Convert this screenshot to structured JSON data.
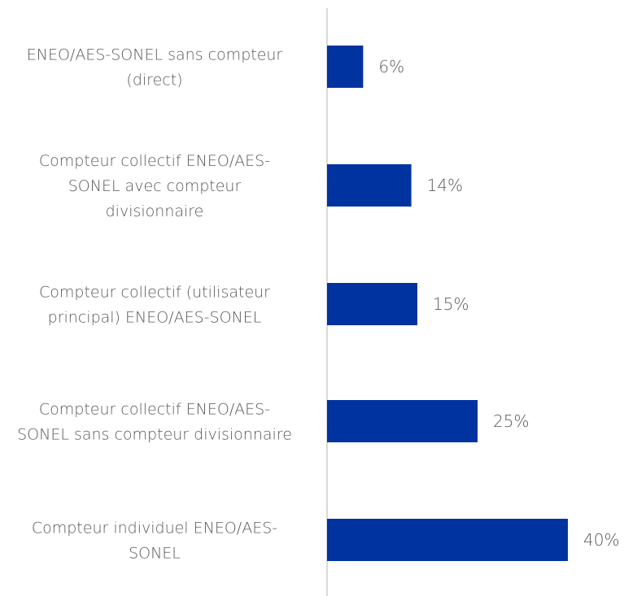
{
  "chart_data": {
    "type": "bar",
    "orientation": "horizontal",
    "categories": [
      [
        "ENEO/AES-SONEL sans compteur",
        "(direct)"
      ],
      [
        "Compteur collectif  ENEO/AES-",
        "SONEL avec compteur",
        "divisionnaire"
      ],
      [
        "Compteur collectif (utilisateur",
        "principal) ENEO/AES-SONEL"
      ],
      [
        "Compteur collectif ENEO/AES-",
        "SONEL sans compteur divisionnaire"
      ],
      [
        "Compteur individuel ENEO/AES-",
        "SONEL"
      ]
    ],
    "values": [
      6,
      14,
      15,
      25,
      40
    ],
    "value_labels": [
      "6%",
      "14%",
      "15%",
      "25%",
      "40%"
    ],
    "unit": "%",
    "xlim": [
      0,
      40
    ],
    "grid": false,
    "legend": "none",
    "colors": {
      "bar": "#0033a0",
      "axis": "#d9d9d9",
      "text": "#595959"
    }
  }
}
